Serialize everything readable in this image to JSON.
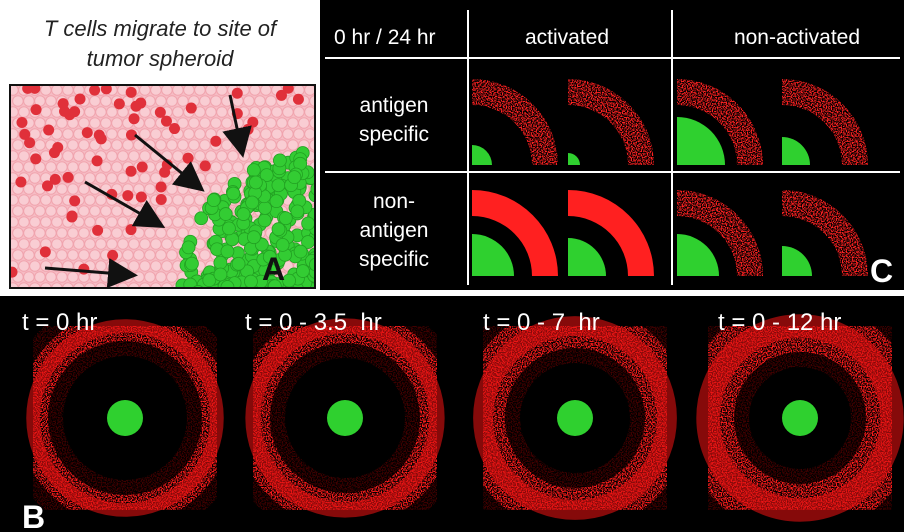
{
  "panel_a": {
    "title_lines": [
      "T cells migrate to site of",
      "tumor spheroid"
    ],
    "label": "A"
  },
  "panel_c": {
    "header": [
      "0 hr / 24 hr",
      "activated",
      "non-activated"
    ],
    "rows": [
      {
        "lines": [
          "antigen",
          "specific"
        ]
      },
      {
        "lines": [
          "non-",
          "antigen",
          "specific"
        ]
      }
    ],
    "label": "C"
  },
  "panel_b": {
    "times": [
      "t = 0 hr",
      "t = 0 - 3.5  hr",
      "t = 0 - 7  hr",
      "t = 0 - 12 hr"
    ],
    "label": "B"
  }
}
